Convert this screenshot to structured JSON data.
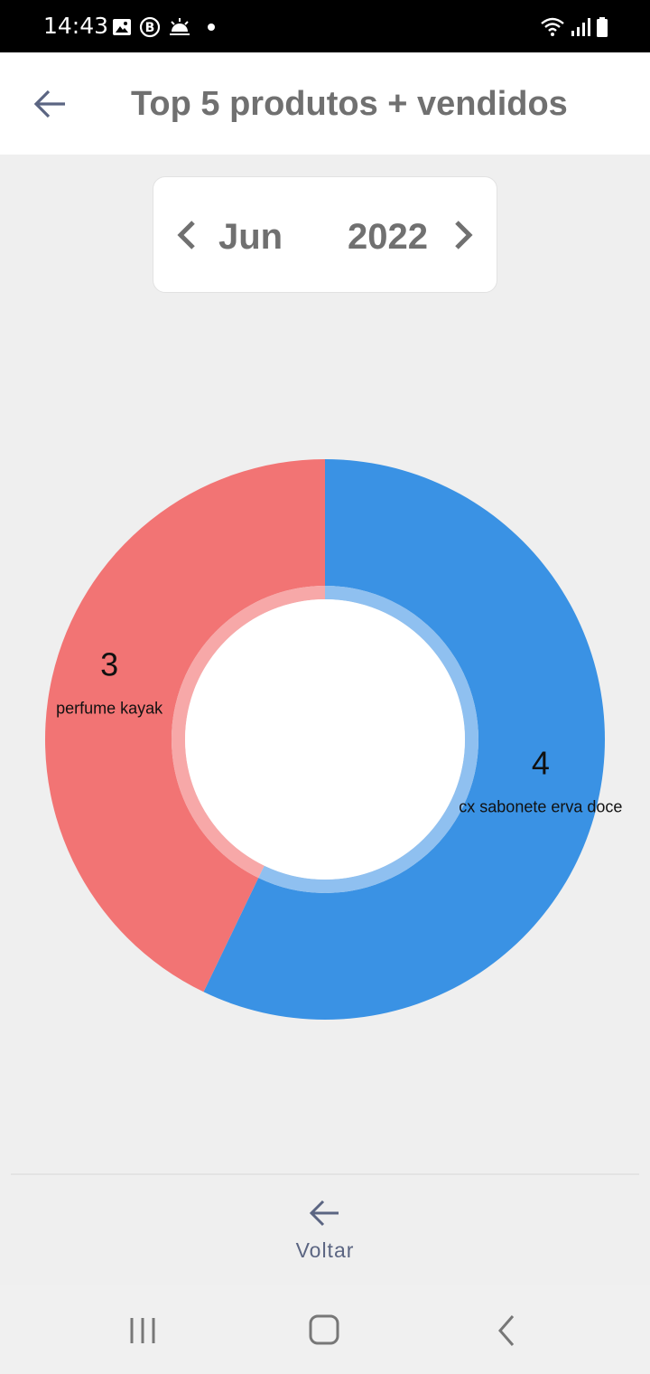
{
  "status_bar": {
    "time": "14:43",
    "icons": [
      "image-icon",
      "b-badge-icon",
      "weather-icon",
      "dot-icon",
      "wifi-icon",
      "signal-icon",
      "battery-icon"
    ]
  },
  "app_bar": {
    "title": "Top 5 produtos + vendidos"
  },
  "date_picker": {
    "month": "Jun",
    "year": "2022"
  },
  "chart_data": {
    "type": "pie",
    "style": "donut",
    "categories": [
      "cx sabonete erva doce",
      "perfume kayak"
    ],
    "values": [
      4,
      3
    ],
    "colors": [
      "#3a92e4",
      "#f27474"
    ],
    "inner_ring_colors": [
      "#8fc0f0",
      "#f7a8a8"
    ]
  },
  "footer": {
    "back_label": "Voltar"
  },
  "colors": {
    "accent": "#5b6582",
    "title_text": "#707070"
  }
}
